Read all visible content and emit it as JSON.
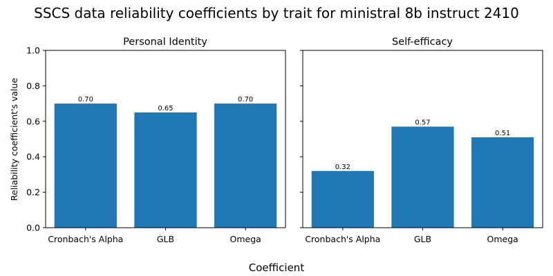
{
  "chart_data": {
    "type": "bar",
    "title": "SSCS data reliability coefficients by trait for ministral 8b instruct 2410",
    "xlabel": "Coefficient",
    "ylabel": "Reliability coefficient's value",
    "ylim": [
      0,
      1.0
    ],
    "yticks": [
      "0.0",
      "0.2",
      "0.4",
      "0.6",
      "0.8",
      "1.0"
    ],
    "bar_color": "#1f77b4",
    "grid": false,
    "legend": "none",
    "categories": [
      "Cronbach's Alpha",
      "GLB",
      "Omega"
    ],
    "panels": [
      {
        "subtitle": "Personal Identity",
        "values": [
          0.7,
          0.65,
          0.7
        ],
        "labels": [
          "0.70",
          "0.65",
          "0.70"
        ]
      },
      {
        "subtitle": "Self-efficacy",
        "values": [
          0.32,
          0.57,
          0.51
        ],
        "labels": [
          "0.32",
          "0.57",
          "0.51"
        ]
      }
    ]
  }
}
